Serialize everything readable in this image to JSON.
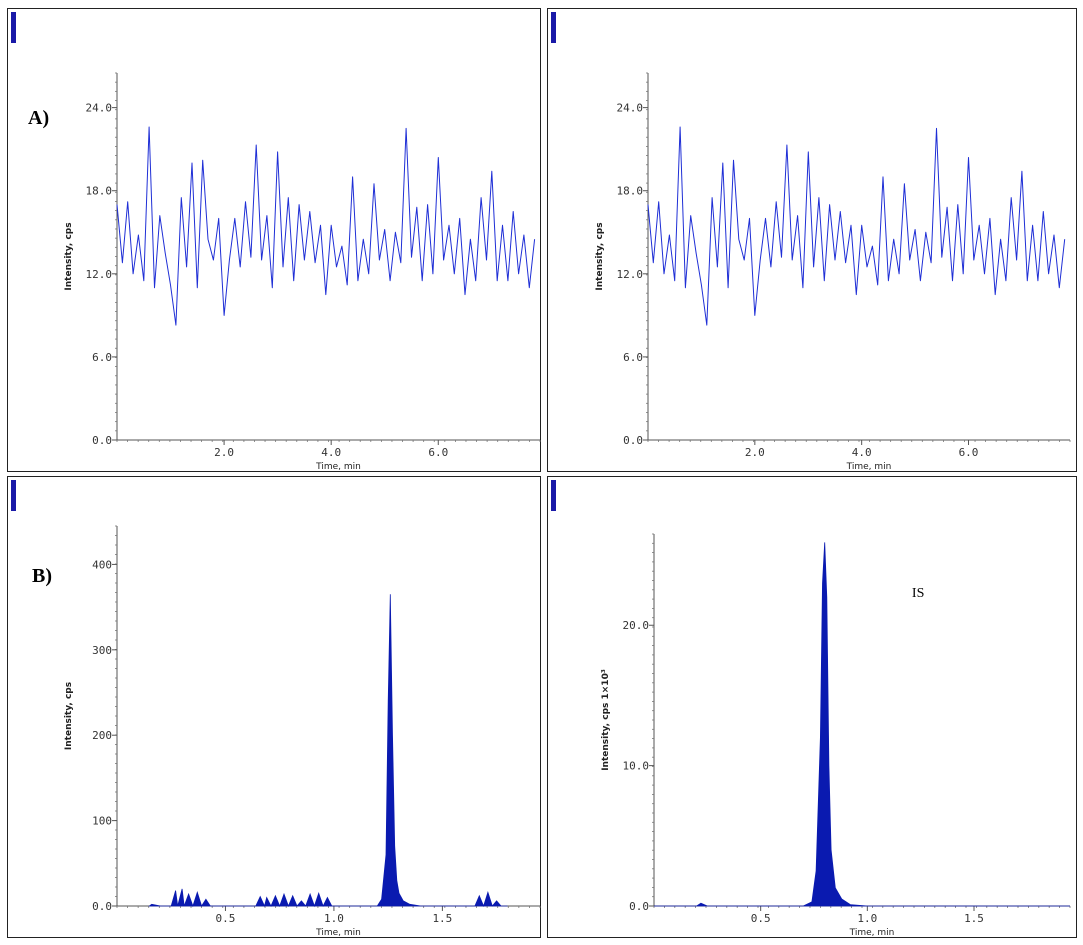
{
  "labels": {
    "panel_a": "A)",
    "panel_b": "B)"
  },
  "chart_data": [
    {
      "id": "p1",
      "type": "line",
      "color": "#1f2fd6",
      "xlim": [
        0,
        7.9
      ],
      "ylim": [
        0,
        26.5
      ],
      "xticks": [
        2.0,
        4.0,
        6.0
      ],
      "xtick_labels": [
        "2.0",
        "4.0",
        "6.0"
      ],
      "yticks": [
        0,
        6,
        12,
        18,
        24
      ],
      "ytick_labels": [
        "0.0",
        "6.0",
        "12.0",
        "18.0",
        "24.0"
      ],
      "xlabel": "Time, min",
      "ylabel": "Intensity, cps",
      "x": [
        0.0,
        0.1,
        0.2,
        0.3,
        0.4,
        0.5,
        0.6,
        0.7,
        0.8,
        0.9,
        1.0,
        1.1,
        1.2,
        1.3,
        1.4,
        1.5,
        1.6,
        1.7,
        1.8,
        1.9,
        2.0,
        2.1,
        2.2,
        2.3,
        2.4,
        2.5,
        2.6,
        2.7,
        2.8,
        2.9,
        3.0,
        3.1,
        3.2,
        3.3,
        3.4,
        3.5,
        3.6,
        3.7,
        3.8,
        3.9,
        4.0,
        4.1,
        4.2,
        4.3,
        4.4,
        4.5,
        4.6,
        4.7,
        4.8,
        4.9,
        5.0,
        5.1,
        5.2,
        5.3,
        5.4,
        5.5,
        5.6,
        5.7,
        5.8,
        5.9,
        6.0,
        6.1,
        6.2,
        6.3,
        6.4,
        6.5,
        6.6,
        6.7,
        6.8,
        6.9,
        7.0,
        7.1,
        7.2,
        7.3,
        7.4,
        7.5,
        7.6,
        7.7,
        7.8
      ],
      "y": [
        17.0,
        12.8,
        17.2,
        12.0,
        14.8,
        11.5,
        22.6,
        11.0,
        16.2,
        13.5,
        11.2,
        8.3,
        17.5,
        12.5,
        20.0,
        11.0,
        20.2,
        14.5,
        13.0,
        16.0,
        9.0,
        13.0,
        16.0,
        12.5,
        17.2,
        13.2,
        21.3,
        13.0,
        16.2,
        11.0,
        20.8,
        12.5,
        17.5,
        11.5,
        17.0,
        13.0,
        16.5,
        12.8,
        15.5,
        10.5,
        15.5,
        12.5,
        14.0,
        11.2,
        19.0,
        11.5,
        14.5,
        12.0,
        18.5,
        13.0,
        15.2,
        11.5,
        15.0,
        12.8,
        22.5,
        13.2,
        16.8,
        11.5,
        17.0,
        12.0,
        20.4,
        13.0,
        15.5,
        12.0,
        16.0,
        10.5,
        14.5,
        11.5,
        17.5,
        13.0,
        19.4,
        11.5,
        15.5,
        11.5,
        16.5,
        12.0,
        14.8,
        11.0,
        14.5
      ]
    },
    {
      "id": "p2",
      "type": "line",
      "color": "#1f2fd6",
      "xlim": [
        0,
        7.9
      ],
      "ylim": [
        0,
        26.5
      ],
      "xticks": [
        2.0,
        4.0,
        6.0
      ],
      "xtick_labels": [
        "2.0",
        "4.0",
        "6.0"
      ],
      "yticks": [
        0,
        6,
        12,
        18,
        24
      ],
      "ytick_labels": [
        "0.0",
        "6.0",
        "12.0",
        "18.0",
        "24.0"
      ],
      "xlabel": "Time, min",
      "ylabel": "Intensity, cps",
      "x": [
        0.0,
        0.1,
        0.2,
        0.3,
        0.4,
        0.5,
        0.6,
        0.7,
        0.8,
        0.9,
        1.0,
        1.1,
        1.2,
        1.3,
        1.4,
        1.5,
        1.6,
        1.7,
        1.8,
        1.9,
        2.0,
        2.1,
        2.2,
        2.3,
        2.4,
        2.5,
        2.6,
        2.7,
        2.8,
        2.9,
        3.0,
        3.1,
        3.2,
        3.3,
        3.4,
        3.5,
        3.6,
        3.7,
        3.8,
        3.9,
        4.0,
        4.1,
        4.2,
        4.3,
        4.4,
        4.5,
        4.6,
        4.7,
        4.8,
        4.9,
        5.0,
        5.1,
        5.2,
        5.3,
        5.4,
        5.5,
        5.6,
        5.7,
        5.8,
        5.9,
        6.0,
        6.1,
        6.2,
        6.3,
        6.4,
        6.5,
        6.6,
        6.7,
        6.8,
        6.9,
        7.0,
        7.1,
        7.2,
        7.3,
        7.4,
        7.5,
        7.6,
        7.7,
        7.8
      ],
      "y": [
        17.0,
        12.8,
        17.2,
        12.0,
        14.8,
        11.5,
        22.6,
        11.0,
        16.2,
        13.5,
        11.2,
        8.3,
        17.5,
        12.5,
        20.0,
        11.0,
        20.2,
        14.5,
        13.0,
        16.0,
        9.0,
        13.0,
        16.0,
        12.5,
        17.2,
        13.2,
        21.3,
        13.0,
        16.2,
        11.0,
        20.8,
        12.5,
        17.5,
        11.5,
        17.0,
        13.0,
        16.5,
        12.8,
        15.5,
        10.5,
        15.5,
        12.5,
        14.0,
        11.2,
        19.0,
        11.5,
        14.5,
        12.0,
        18.5,
        13.0,
        15.2,
        11.5,
        15.0,
        12.8,
        22.5,
        13.2,
        16.8,
        11.5,
        17.0,
        12.0,
        20.4,
        13.0,
        15.5,
        12.0,
        16.0,
        10.5,
        14.5,
        11.5,
        17.5,
        13.0,
        19.4,
        11.5,
        15.5,
        11.5,
        16.5,
        12.0,
        14.8,
        11.0,
        14.5
      ]
    },
    {
      "id": "p3",
      "type": "area",
      "color": "#0a1ab0",
      "xlim": [
        0,
        1.95
      ],
      "ylim": [
        0,
        445
      ],
      "xticks": [
        0.5,
        1.0,
        1.5
      ],
      "xtick_labels": [
        "0.5",
        "1.0",
        "1.5"
      ],
      "yticks": [
        0,
        100,
        200,
        300,
        400
      ],
      "ytick_labels": [
        "0.0",
        "100",
        "200",
        "300",
        "400"
      ],
      "xlabel": "Time, min",
      "ylabel": "Intensity, cps",
      "x": [
        0.15,
        0.16,
        0.18,
        0.2,
        0.25,
        0.27,
        0.28,
        0.3,
        0.31,
        0.33,
        0.35,
        0.37,
        0.39,
        0.41,
        0.43,
        0.45,
        0.64,
        0.66,
        0.68,
        0.69,
        0.71,
        0.73,
        0.75,
        0.77,
        0.79,
        0.81,
        0.83,
        0.85,
        0.87,
        0.89,
        0.91,
        0.93,
        0.95,
        0.97,
        0.99,
        1.01,
        1.2,
        1.22,
        1.24,
        1.25,
        1.26,
        1.27,
        1.28,
        1.29,
        1.3,
        1.32,
        1.35,
        1.4,
        1.65,
        1.67,
        1.69,
        1.71,
        1.73,
        1.75,
        1.77,
        1.8
      ],
      "y": [
        0,
        2,
        1,
        0,
        0,
        18,
        0,
        20,
        0,
        14,
        0,
        16,
        0,
        8,
        0,
        0,
        0,
        11,
        0,
        10,
        0,
        12,
        0,
        14,
        0,
        12,
        0,
        6,
        0,
        14,
        0,
        15,
        0,
        10,
        0,
        0,
        0,
        8,
        60,
        240,
        365,
        200,
        70,
        30,
        15,
        6,
        2,
        0,
        0,
        12,
        0,
        16,
        0,
        6,
        0,
        0
      ]
    },
    {
      "id": "p4",
      "type": "area",
      "color": "#0a1ab0",
      "xlim": [
        0,
        1.95
      ],
      "ylim": [
        0,
        26.5
      ],
      "xticks": [
        0.5,
        1.0,
        1.5
      ],
      "xtick_labels": [
        "0.5",
        "1.0",
        "1.5"
      ],
      "yticks": [
        0,
        10,
        20
      ],
      "ytick_labels": [
        "0.0",
        "10.0",
        "20.0"
      ],
      "xlabel": "Time, min",
      "ylabel": "Intensity, cps 1×10³",
      "annotation": "IS",
      "x": [
        0.0,
        0.2,
        0.22,
        0.25,
        0.7,
        0.74,
        0.76,
        0.78,
        0.79,
        0.8,
        0.81,
        0.82,
        0.83,
        0.85,
        0.88,
        0.92,
        1.0,
        1.95
      ],
      "y": [
        0,
        0,
        0.2,
        0,
        0,
        0.3,
        2.5,
        12.0,
        23.0,
        25.9,
        22.0,
        10.0,
        4.0,
        1.3,
        0.5,
        0.1,
        0,
        0
      ]
    }
  ]
}
